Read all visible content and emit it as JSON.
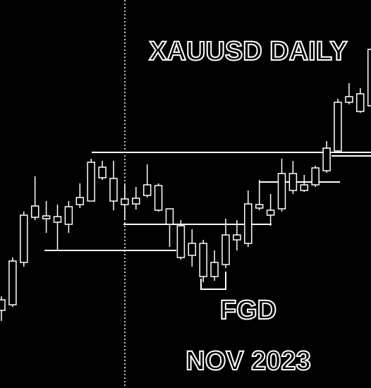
{
  "chart_data": {
    "type": "candlestick",
    "title": "XAUUSD DAILY",
    "annotations": [
      "FGD",
      "NOV 2023"
    ],
    "ylim": [
      0,
      550
    ],
    "color": "#ffffff",
    "open": [
      110,
      118,
      178,
      242,
      240,
      235,
      232,
      260,
      265,
      298,
      265,
      260,
      261,
      273,
      252,
      232,
      185,
      188,
      158,
      158,
      175,
      210,
      205,
      255,
      245,
      254,
      280,
      280,
      288,
      308,
      336,
      405,
      392,
      400
    ],
    "high": [
      130,
      185,
      250,
      300,
      265,
      260,
      265,
      290,
      325,
      322,
      322,
      288,
      285,
      317,
      290,
      254,
      238,
      225,
      210,
      195,
      240,
      238,
      280,
      295,
      275,
      325,
      322,
      302,
      315,
      350,
      410,
      432,
      425,
      480
    ],
    "low": [
      95,
      115,
      172,
      238,
      220,
      195,
      220,
      255,
      265,
      295,
      252,
      238,
      253,
      270,
      250,
      200,
      182,
      172,
      150,
      152,
      170,
      195,
      200,
      252,
      230,
      250,
      275,
      278,
      285,
      305,
      335,
      402,
      390,
      398
    ],
    "close": [
      125,
      180,
      245,
      258,
      244,
      243,
      257,
      270,
      320,
      313,
      297,
      268,
      269,
      288,
      287,
      254,
      230,
      205,
      205,
      178,
      217,
      217,
      261,
      260,
      252,
      304,
      304,
      288,
      312,
      340,
      405,
      413,
      417,
      480
    ]
  }
}
